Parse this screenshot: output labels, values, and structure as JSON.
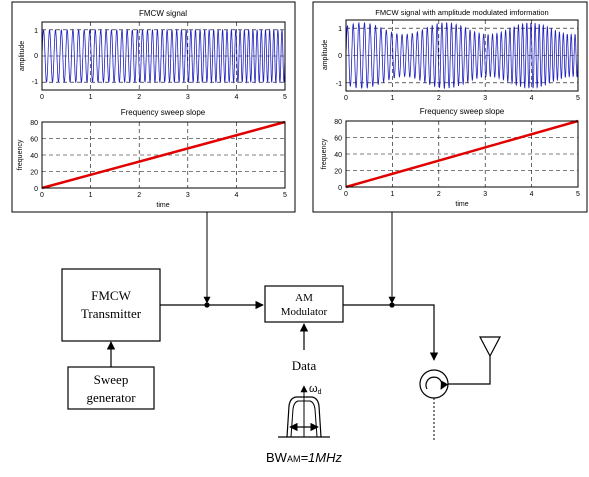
{
  "left_panel": {
    "top_plot": {
      "title": "FMCW signal",
      "ylabel": "amplitude",
      "xticks": [
        "0",
        "1",
        "2",
        "3",
        "4",
        "5"
      ],
      "yticks": [
        "1",
        "0",
        "-1"
      ]
    },
    "bottom_plot": {
      "title": "Frequency sweep slope",
      "ylabel": "frequency",
      "xlabel": "time",
      "xticks": [
        "0",
        "1",
        "2",
        "3",
        "4",
        "5"
      ],
      "yticks": [
        "80",
        "60",
        "40",
        "20",
        "0"
      ]
    }
  },
  "right_panel": {
    "top_plot": {
      "title": "FMCW signal with amplitude modulated imformation",
      "ylabel": "amplitude",
      "xticks": [
        "0",
        "1",
        "2",
        "3",
        "4",
        "5"
      ],
      "yticks": [
        "1",
        "0",
        "-1"
      ]
    },
    "bottom_plot": {
      "title": "Frequency sweep slope",
      "ylabel": "frequency",
      "xlabel": "time",
      "xticks": [
        "0",
        "1",
        "2",
        "3",
        "4",
        "5"
      ],
      "yticks": [
        "80",
        "60",
        "40",
        "20",
        "0"
      ]
    }
  },
  "blocks": {
    "transmitter": [
      "FMCW",
      "Transmitter"
    ],
    "sweep": [
      "Sweep",
      "generator"
    ],
    "modulator": [
      "AM",
      "Modulator"
    ]
  },
  "labels": {
    "data": "Data",
    "omega": "ω",
    "omega_sub": "d",
    "bw_main": "BW",
    "bw_sub": "AM",
    "bw_value": "=1MHz"
  },
  "colors": {
    "signal": "#1f1fbf",
    "slope": "#e00000",
    "line": "#000000"
  },
  "chart_data": [
    {
      "type": "line",
      "title": "FMCW signal",
      "xlabel": "",
      "ylabel": "amplitude",
      "xlim": [
        0,
        5
      ],
      "ylim": [
        -1.3,
        1.3
      ],
      "grid": true,
      "series": [
        {
          "kind": "chirp",
          "amplitude": 1.0,
          "envelope": "constant"
        }
      ]
    },
    {
      "type": "line",
      "title": "Frequency sweep slope",
      "xlabel": "time",
      "ylabel": "frequency",
      "xlim": [
        0,
        5
      ],
      "ylim": [
        0,
        80
      ],
      "grid": true,
      "series": [
        {
          "x": [
            0,
            5
          ],
          "y": [
            0,
            80
          ]
        }
      ]
    },
    {
      "type": "line",
      "title": "FMCW signal with amplitude modulated imformation",
      "xlabel": "",
      "ylabel": "amplitude",
      "xlim": [
        0,
        5
      ],
      "ylim": [
        -1.3,
        1.3
      ],
      "grid": true,
      "series": [
        {
          "kind": "chirp",
          "amplitude": 1.2,
          "envelope": "amplitude-modulated"
        }
      ]
    },
    {
      "type": "line",
      "title": "Frequency sweep slope",
      "xlabel": "time",
      "ylabel": "frequency",
      "xlim": [
        0,
        5
      ],
      "ylim": [
        0,
        80
      ],
      "grid": true,
      "series": [
        {
          "x": [
            0,
            5
          ],
          "y": [
            0,
            80
          ]
        }
      ]
    }
  ]
}
